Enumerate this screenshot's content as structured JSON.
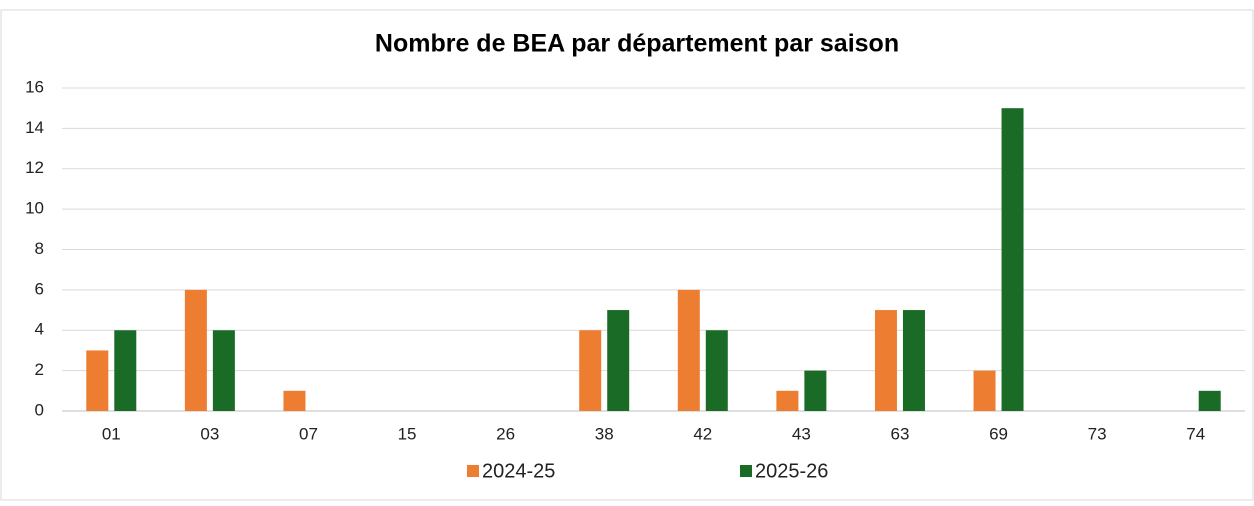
{
  "chart_data": {
    "type": "bar",
    "title": "Nombre de BEA par département par saison",
    "categories": [
      "01",
      "03",
      "07",
      "15",
      "26",
      "38",
      "42",
      "43",
      "63",
      "69",
      "73",
      "74"
    ],
    "series": [
      {
        "name": "2024-25",
        "color": "#ed7d31",
        "values": [
          3,
          6,
          1,
          0,
          0,
          4,
          6,
          1,
          5,
          2,
          0,
          0
        ]
      },
      {
        "name": "2025-26",
        "color": "#1a6b26",
        "values": [
          4,
          4,
          0,
          0,
          0,
          5,
          4,
          2,
          5,
          15,
          0,
          1
        ]
      }
    ],
    "ylim": [
      0,
      16
    ],
    "yticks": [
      0,
      2,
      4,
      6,
      8,
      10,
      12,
      14,
      16
    ],
    "grid": true,
    "legend": "bottom"
  }
}
